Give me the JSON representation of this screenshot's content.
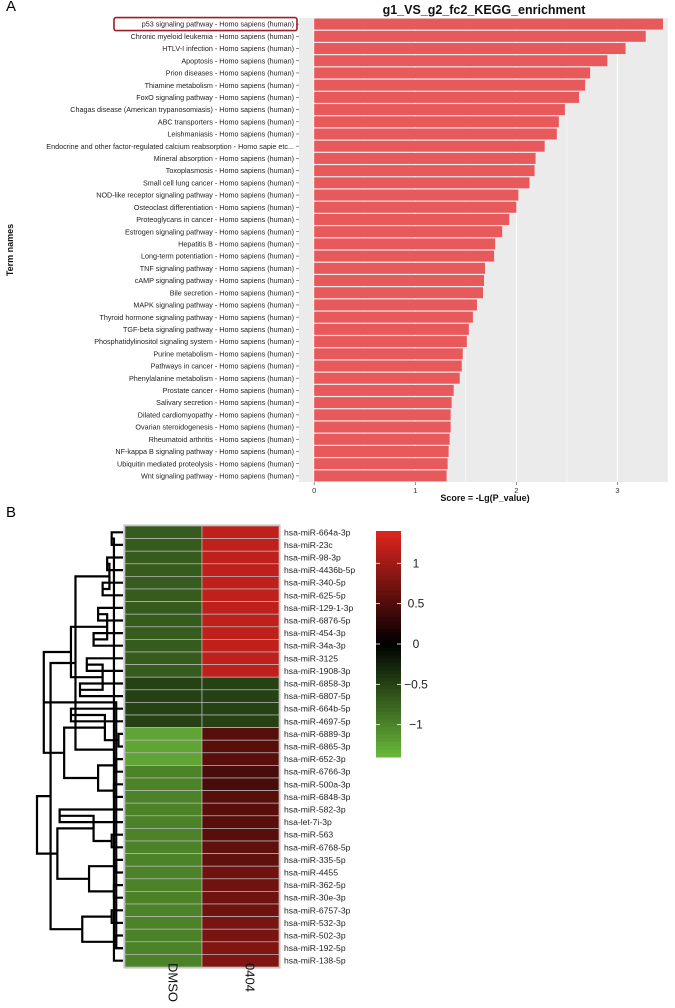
{
  "panel_labels": {
    "a": "A",
    "b": "B"
  },
  "colors": {
    "bar": "#e8595c",
    "plot_bg": "#ebebeb",
    "grid": "#ffffff",
    "highlight": "#a01c28",
    "hm_high": "#e0251f",
    "hm_mid": "#000000",
    "hm_low": "#6ab83a",
    "hm_cell_border": "#bcbcbc"
  },
  "chart_data": [
    {
      "type": "bar",
      "orientation": "horizontal",
      "title": "g1_VS_g2_fc2_KEGG_enrichment",
      "xlabel": "Score = -Lg(P_value)",
      "ylabel": "Term names",
      "xlim": [
        -0.15,
        3.5
      ],
      "xticks": [
        "0",
        "1",
        "2",
        "3"
      ],
      "highlighted_term": "p53 signaling pathway - Homo sapiens (human)",
      "categories": [
        "p53 signaling pathway - Homo sapiens (human)",
        "Chronic myeloid leukemia - Homo sapiens (human)",
        "HTLV-I infection - Homo sapiens (human)",
        "Apoptosis - Homo sapiens (human)",
        "Prion diseases - Homo sapiens (human)",
        "Thiamine metabolism - Homo sapiens (human)",
        "FoxO signaling pathway - Homo sapiens (human)",
        "Chagas disease (American trypanosomiasis) - Homo sapiens (human)",
        "ABC transporters - Homo sapiens (human)",
        "Leishmaniasis - Homo sapiens (human)",
        "Endocrine and other factor-regulated calcium reabsorption - Homo sapie etc...",
        "Mineral absorption - Homo sapiens (human)",
        "Toxoplasmosis - Homo sapiens (human)",
        "Small cell lung cancer - Homo sapiens (human)",
        "NOD-like receptor signaling pathway - Homo sapiens (human)",
        "Osteoclast differentiation - Homo sapiens (human)",
        "Proteoglycans in cancer - Homo sapiens (human)",
        "Estrogen signaling pathway - Homo sapiens (human)",
        "Hepatitis B - Homo sapiens (human)",
        "Long-term potentiation - Homo sapiens (human)",
        "TNF signaling pathway - Homo sapiens (human)",
        "cAMP signaling pathway - Homo sapiens (human)",
        "Bile secretion - Homo sapiens (human)",
        "MAPK signaling pathway - Homo sapiens (human)",
        "Thyroid hormone signaling pathway - Homo sapiens (human)",
        "TGF-beta signaling pathway - Homo sapiens (human)",
        "Phosphatidylinositol signaling system - Homo sapiens (human)",
        "Purine metabolism - Homo sapiens (human)",
        "Pathways in cancer - Homo sapiens (human)",
        "Phenylalanine metabolism - Homo sapiens (human)",
        "Prostate cancer - Homo sapiens (human)",
        "Salivary secretion - Homo sapiens (human)",
        "Dilated cardiomyopathy - Homo sapiens (human)",
        "Ovarian steroidogenesis - Homo sapiens (human)",
        "Rheumatoid arthritis - Homo sapiens (human)",
        "NF-kappa B signaling pathway - Homo sapiens (human)",
        "Ubiquitin mediated proteolysis - Homo sapiens (human)",
        "Wnt signaling pathway - Homo sapiens (human)"
      ],
      "values": [
        3.45,
        3.28,
        3.08,
        2.9,
        2.73,
        2.68,
        2.62,
        2.48,
        2.42,
        2.4,
        2.28,
        2.19,
        2.18,
        2.13,
        2.02,
        2.0,
        1.93,
        1.86,
        1.79,
        1.78,
        1.69,
        1.68,
        1.67,
        1.61,
        1.57,
        1.53,
        1.51,
        1.47,
        1.46,
        1.44,
        1.38,
        1.36,
        1.35,
        1.35,
        1.34,
        1.33,
        1.32,
        1.31
      ]
    },
    {
      "type": "heatmap",
      "columns": [
        "DMSO",
        "0404"
      ],
      "rows": [
        "hsa-miR-664a-3p",
        "hsa-miR-23c",
        "hsa-miR-98-3p",
        "hsa-miR-4436b-5p",
        "hsa-miR-340-5p",
        "hsa-miR-625-5p",
        "hsa-miR-129-1-3p",
        "hsa-miR-6876-5p",
        "hsa-miR-454-3p",
        "hsa-miR-34a-3p",
        "hsa-miR-3125",
        "hsa-miR-1908-3p",
        "hsa-miR-6858-3p",
        "hsa-miR-6807-5p",
        "hsa-miR-664b-5p",
        "hsa-miR-4697-5p",
        "hsa-miR-6889-3p",
        "hsa-miR-6865-3p",
        "hsa-miR-652-3p",
        "hsa-miR-6766-3p",
        "hsa-miR-500a-3p",
        "hsa-miR-6848-3p",
        "hsa-miR-582-3p",
        "hsa-let-7i-3p",
        "hsa-miR-563",
        "hsa-miR-6768-5p",
        "hsa-miR-335-5p",
        "hsa-miR-4455",
        "hsa-miR-362-5p",
        "hsa-miR-30e-3p",
        "hsa-miR-6757-3p",
        "hsa-miR-532-3p",
        "hsa-miR-502-3p",
        "hsa-miR-192-5p",
        "hsa-miR-138-5p"
      ],
      "values": [
        [
          -0.7,
          1.2
        ],
        [
          -0.7,
          1.2
        ],
        [
          -0.7,
          1.2
        ],
        [
          -0.7,
          1.2
        ],
        [
          -0.7,
          1.2
        ],
        [
          -0.7,
          1.2
        ],
        [
          -0.7,
          1.2
        ],
        [
          -0.7,
          1.2
        ],
        [
          -0.7,
          1.2
        ],
        [
          -0.7,
          1.2
        ],
        [
          -0.7,
          1.2
        ],
        [
          -0.7,
          1.2
        ],
        [
          -0.5,
          -0.5
        ],
        [
          -0.5,
          -0.5
        ],
        [
          -0.5,
          -0.5
        ],
        [
          -0.5,
          -0.5
        ],
        [
          -1.25,
          0.55
        ],
        [
          -1.25,
          0.55
        ],
        [
          -1.25,
          0.55
        ],
        [
          -1.0,
          0.45
        ],
        [
          -1.0,
          0.45
        ],
        [
          -1.0,
          0.55
        ],
        [
          -1.0,
          0.55
        ],
        [
          -1.0,
          0.55
        ],
        [
          -1.0,
          0.55
        ],
        [
          -1.0,
          0.6
        ],
        [
          -1.0,
          0.6
        ],
        [
          -1.0,
          0.7
        ],
        [
          -1.0,
          0.7
        ],
        [
          -1.0,
          0.7
        ],
        [
          -1.0,
          0.7
        ],
        [
          -1.0,
          0.75
        ],
        [
          -1.0,
          0.75
        ],
        [
          -1.0,
          0.8
        ],
        [
          -1.0,
          0.8
        ]
      ],
      "scale": [
        -1.4,
        1.4
      ],
      "colorbar_ticks": [
        {
          "value": 1,
          "label": "1"
        },
        {
          "value": 0.5,
          "label": "0.5"
        },
        {
          "value": 0,
          "label": "0"
        },
        {
          "value": -0.5,
          "label": "−0.5"
        },
        {
          "value": -1,
          "label": "−1"
        }
      ],
      "row_dendrogram": [
        [
          0,
          1,
          5
        ],
        [
          2,
          3,
          7
        ],
        [
          4,
          5,
          9
        ],
        [
          6,
          7,
          11
        ],
        [
          8,
          9,
          13
        ],
        [
          10,
          11,
          16
        ],
        [
          12,
          13,
          19
        ],
        [
          14,
          15,
          23
        ],
        [
          16,
          17,
          2
        ],
        [
          18,
          19,
          3
        ],
        [
          20,
          21,
          4
        ],
        [
          22,
          23,
          28
        ],
        [
          24,
          25,
          5
        ],
        [
          26,
          27,
          3
        ],
        [
          28,
          29,
          4
        ],
        [
          30,
          31,
          5
        ],
        [
          32,
          33,
          3
        ],
        [
          34,
          35,
          4
        ],
        [
          36,
          37,
          6
        ],
        [
          38,
          39,
          7
        ],
        [
          40,
          41,
          9
        ],
        [
          42,
          43,
          8
        ],
        [
          44,
          45,
          11
        ],
        [
          46,
          47,
          13
        ],
        [
          48,
          49,
          15
        ],
        [
          50,
          51,
          18
        ],
        [
          52,
          53,
          21
        ],
        [
          54,
          55,
          23
        ],
        [
          56,
          57,
          26
        ],
        [
          58,
          59,
          29
        ],
        [
          60,
          61,
          32
        ],
        [
          62,
          63,
          35
        ],
        [
          64,
          65,
          38
        ],
        [
          66,
          33,
          3
        ]
      ]
    }
  ]
}
